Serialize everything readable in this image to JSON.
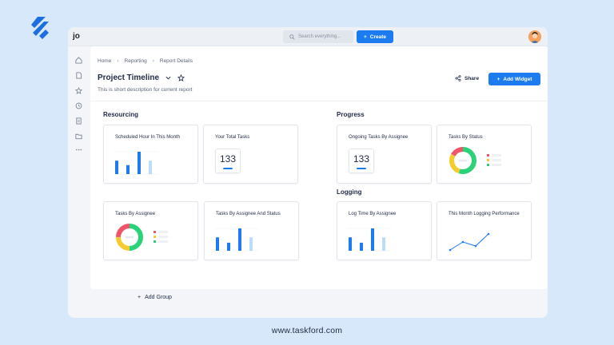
{
  "app": {
    "workspace_initials": "jo",
    "footer_url": "www.taskford.com"
  },
  "topbar": {
    "search_placeholder": "Search everything...",
    "create_label": "Create"
  },
  "sidebar": {
    "items": [
      "home-icon",
      "file-icon",
      "star-icon",
      "history-icon",
      "report-icon",
      "folder-icon",
      "more-icon"
    ]
  },
  "breadcrumb": [
    "Home",
    "Reporting",
    "Report Details"
  ],
  "header": {
    "title": "Project Timeline",
    "description": "This is short description for current report",
    "share_label": "Share",
    "add_widget_label": "Add Widget"
  },
  "groups": {
    "resourcing": {
      "title": "Resourcing",
      "cards": [
        {
          "title": "Scheduled Hour In This Month"
        },
        {
          "title": "Your Total Tasks",
          "value": "133"
        },
        {
          "title": "Tasks By Assignee"
        },
        {
          "title": "Tasks By Assignee And Status"
        }
      ]
    },
    "progress": {
      "title": "Progress",
      "cards": [
        {
          "title": "Ongoing Tasks By Assignee",
          "value": "133"
        },
        {
          "title": "Tasks By Status"
        }
      ]
    },
    "logging": {
      "title": "Logging",
      "cards": [
        {
          "title": "Log Time By Assignee"
        },
        {
          "title": "This Month Logging Performance"
        }
      ]
    }
  },
  "add_group_label": "Add Group",
  "colors": {
    "accent": "#1d7bf0",
    "light_blue": "#bcdcfb",
    "green": "#2bd27a",
    "yellow": "#f5cc2f",
    "red": "#f0566a"
  },
  "chart_data": [
    {
      "type": "bar",
      "title": "Scheduled Hour In This Month",
      "values": [
        3,
        2,
        5,
        3
      ]
    },
    {
      "type": "bar",
      "title": "Tasks By Assignee And Status",
      "values": [
        3,
        1.8,
        5,
        3
      ]
    },
    {
      "type": "bar",
      "title": "Log Time By Assignee",
      "values": [
        3,
        1.8,
        5,
        3
      ]
    },
    {
      "type": "pie",
      "title": "Tasks By Assignee",
      "values": [
        50,
        25,
        25
      ]
    },
    {
      "type": "pie",
      "title": "Tasks By Status",
      "values": [
        55,
        28,
        17
      ]
    },
    {
      "type": "line",
      "title": "This Month Logging Performance",
      "values": [
        1,
        2,
        1.5,
        3
      ]
    }
  ]
}
